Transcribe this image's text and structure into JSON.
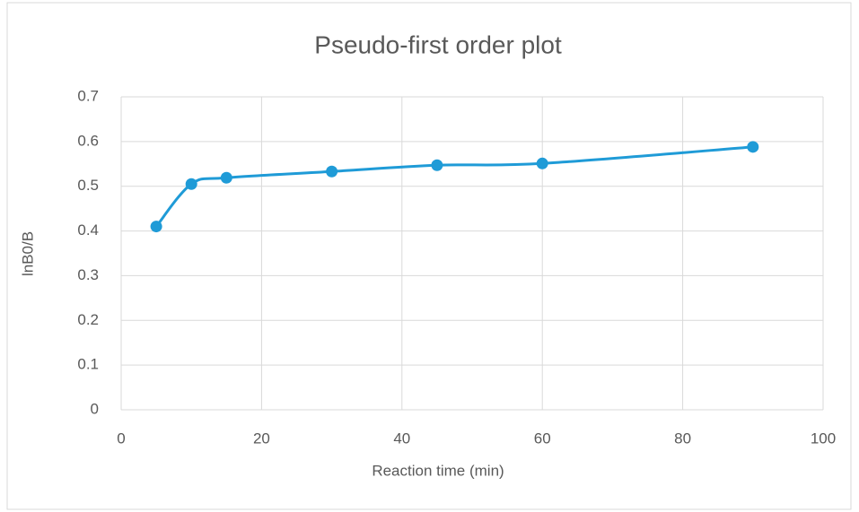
{
  "chart_data": {
    "type": "line",
    "title": "Pseudo-first order plot",
    "x_label": "Reaction time (min)",
    "y_label": "lnB0/B",
    "x": [
      5,
      10,
      15,
      30,
      45,
      60,
      90
    ],
    "values": [
      0.41,
      0.505,
      0.519,
      0.533,
      0.547,
      0.551,
      0.588
    ],
    "color": "#1f9bd7",
    "xlim": [
      0,
      100
    ],
    "xticks": [
      0,
      20,
      40,
      60,
      80,
      100
    ],
    "ylim": [
      0,
      0.7
    ],
    "yticks": [
      0,
      0.1,
      0.2,
      0.3,
      0.4,
      0.5,
      0.6,
      0.7
    ],
    "grid": true,
    "smooth": true
  }
}
